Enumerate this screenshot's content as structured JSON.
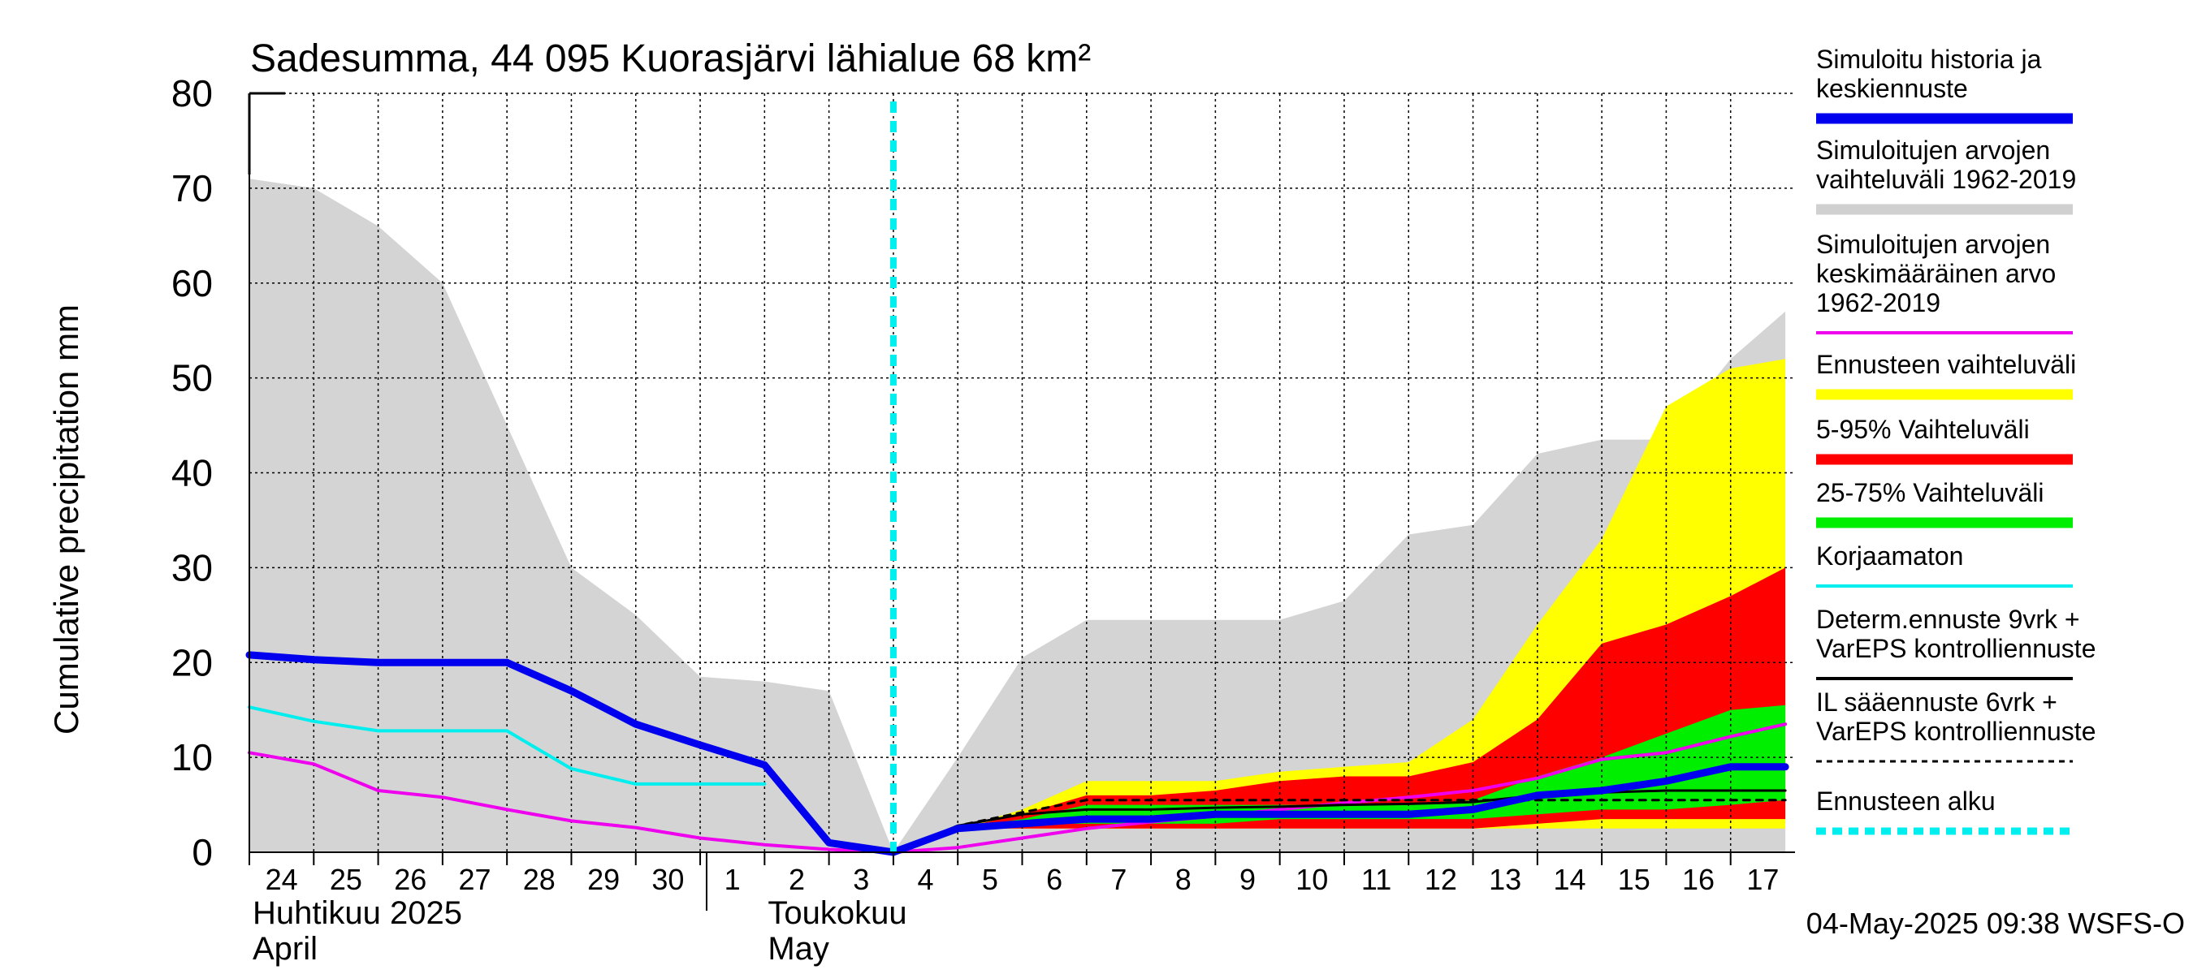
{
  "chart_data": {
    "type": "area",
    "title": "Sadesumma, 44 095 Kuorasjärvi lähialue 68 km²",
    "ylabel": "Cumulative precipitation   mm",
    "ylim": [
      0,
      80
    ],
    "yticks": [
      0,
      10,
      20,
      30,
      40,
      50,
      60,
      70,
      80
    ],
    "x_start_day_label": "24",
    "day_labels": [
      "24",
      "25",
      "26",
      "27",
      "28",
      "29",
      "30",
      "1",
      "2",
      "3",
      "4",
      "5",
      "6",
      "7",
      "8",
      "9",
      "10",
      "11",
      "12",
      "13",
      "14",
      "15",
      "16",
      "17"
    ],
    "month_labels": [
      {
        "line1": "Huhtikuu  2025",
        "line2": "April",
        "at_day": "24"
      },
      {
        "line1": "Toukokuu",
        "line2": "May",
        "at_day": "2"
      }
    ],
    "forecast_start_day": "4",
    "footer": "04-May-2025 09:38 WSFS-O",
    "legend": [
      {
        "label": "Simuloitu historia ja keskiennuste",
        "color": "#0000ee",
        "style": "thick"
      },
      {
        "label": "Simuloitujen arvojen vaihteluväli 1962-2019",
        "color": "#d0d0d0",
        "style": "thick"
      },
      {
        "label": "Simuloitujen arvojen keskimääräinen arvo 1962-2019",
        "color": "#ee00ee",
        "style": "line"
      },
      {
        "label": "Ennusteen vaihteluväli",
        "color": "#ffff00",
        "style": "thick"
      },
      {
        "label": "5-95% Vaihteluväli",
        "color": "#ff0000",
        "style": "thick"
      },
      {
        "label": "25-75% Vaihteluväli",
        "color": "#00ee00",
        "style": "thick"
      },
      {
        "label": "Korjaamaton",
        "color": "#00eeee",
        "style": "line"
      },
      {
        "label": "Determ.ennuste 9vrk + VarEPS kontrolliennuste",
        "color": "#000000",
        "style": "line"
      },
      {
        "label": "IL sääennuste 6vrk  + VarEPS kontrolliennuste",
        "color": "#000000",
        "style": "dashed"
      },
      {
        "label": "Ennusteen alku",
        "color": "#00eeee",
        "style": "dotted"
      }
    ],
    "series": [
      {
        "key": "history_range_upper",
        "x": [
          0,
          1,
          2,
          3,
          4,
          5,
          6,
          7,
          8,
          9,
          10,
          11,
          12,
          13,
          14,
          15,
          16,
          17,
          18,
          19,
          20,
          21,
          22,
          23,
          23.85
        ],
        "values": [
          71,
          70,
          66,
          60,
          45,
          30,
          25,
          18.5,
          18,
          17,
          0,
          10,
          20.5,
          24.5,
          24.5,
          24.5,
          24.5,
          26.5,
          33.5,
          34.5,
          42,
          43.5,
          43.5,
          52,
          57
        ]
      },
      {
        "key": "forecast_range_upper",
        "x": [
          10,
          11,
          12,
          13,
          14,
          15,
          16,
          17,
          18,
          19,
          20,
          21,
          22,
          23,
          23.85
        ],
        "values": [
          0,
          2.5,
          4.5,
          7.5,
          7.5,
          7.5,
          8.5,
          9,
          9.5,
          14,
          24,
          33,
          47,
          51,
          52
        ]
      },
      {
        "key": "p95",
        "x": [
          10,
          11,
          12,
          13,
          14,
          15,
          16,
          17,
          18,
          19,
          20,
          21,
          22,
          23,
          23.85
        ],
        "values": [
          0,
          2.5,
          4,
          6,
          6,
          6.5,
          7.5,
          8,
          8,
          9.5,
          14,
          22,
          24,
          27,
          30
        ]
      },
      {
        "key": "p75",
        "x": [
          10,
          11,
          12,
          13,
          14,
          15,
          16,
          17,
          18,
          19,
          20,
          21,
          22,
          23,
          23.85
        ],
        "values": [
          0,
          2.5,
          3.5,
          5,
          5,
          5,
          5,
          5,
          5,
          5.5,
          8,
          10,
          12.5,
          15,
          15.5
        ]
      },
      {
        "key": "p25",
        "x": [
          10,
          11,
          12,
          13,
          14,
          15,
          16,
          17,
          18,
          19,
          20,
          21,
          22,
          23,
          23.85
        ],
        "values": [
          0,
          2.5,
          3,
          3,
          3,
          3,
          3.5,
          3.5,
          3.5,
          3.5,
          4,
          4.5,
          4.5,
          5,
          5.5
        ]
      },
      {
        "key": "p5",
        "x": [
          10,
          11,
          12,
          13,
          14,
          15,
          16,
          17,
          18,
          19,
          20,
          21,
          22,
          23,
          23.85
        ],
        "values": [
          0,
          2.5,
          2.5,
          2.5,
          2.5,
          2.5,
          2.5,
          2.5,
          2.5,
          2.5,
          3,
          3.5,
          3.5,
          3.5,
          3.5
        ]
      },
      {
        "key": "forecast_range_lower",
        "x": [
          10,
          11,
          12,
          13,
          14,
          15,
          16,
          17,
          18,
          19,
          20,
          21,
          22,
          23,
          23.85
        ],
        "values": [
          0,
          2.5,
          2.5,
          2.5,
          2.5,
          2.5,
          2.5,
          2.5,
          2.5,
          2.5,
          2.5,
          2.5,
          2.5,
          2.5,
          2.5
        ]
      },
      {
        "key": "mean_1962_2019",
        "x": [
          0,
          1,
          2,
          3,
          4,
          5,
          6,
          7,
          8,
          9,
          10,
          11,
          12,
          13,
          14,
          15,
          16,
          17,
          18,
          19,
          20,
          21,
          22,
          23,
          23.85
        ],
        "values": [
          10.5,
          9.3,
          6.5,
          5.8,
          4.5,
          3.3,
          2.6,
          1.5,
          0.8,
          0.3,
          0,
          0.5,
          1.5,
          2.5,
          3.2,
          3.8,
          4.5,
          5.2,
          5.8,
          6.5,
          7.8,
          9.8,
          10.5,
          12.2,
          13.5
        ]
      },
      {
        "key": "uncorrected",
        "x": [
          0,
          1,
          2,
          3,
          4,
          5,
          6,
          7,
          8
        ],
        "values": [
          15.3,
          13.8,
          12.8,
          12.8,
          12.8,
          8.8,
          7.2,
          7.2,
          7.2
        ]
      },
      {
        "key": "simulated_history",
        "x": [
          0,
          1,
          2,
          3,
          4,
          5,
          6,
          7,
          8,
          9,
          10,
          11,
          12,
          13,
          14,
          15,
          16,
          17,
          18,
          19,
          20,
          21,
          22,
          23,
          23.85
        ],
        "values": [
          20.8,
          20.3,
          20,
          20,
          20,
          17,
          13.5,
          11.3,
          9.2,
          1,
          0,
          2.5,
          3,
          3.5,
          3.5,
          4,
          4,
          4,
          4,
          4.5,
          6,
          6.5,
          7.5,
          9,
          9
        ]
      },
      {
        "key": "determ_9d",
        "x": [
          10,
          11,
          12,
          13,
          14,
          15,
          16,
          17,
          18,
          19,
          20,
          21,
          22,
          23,
          23.85
        ],
        "values": [
          0,
          2.8,
          4,
          4.5,
          4.5,
          4.7,
          4.8,
          5,
          5.1,
          5.3,
          6,
          6.3,
          6.5,
          6.5,
          6.5
        ]
      },
      {
        "key": "il_6d",
        "x": [
          10,
          11,
          12,
          13,
          14,
          15,
          16,
          17,
          18,
          19,
          20,
          21,
          22,
          23,
          23.85
        ],
        "values": [
          0,
          2.8,
          4.2,
          5.5,
          5.5,
          5.5,
          5.5,
          5.5,
          5.5,
          5.5,
          5.5,
          5.5,
          5.5,
          5.5,
          5.5
        ]
      }
    ]
  }
}
